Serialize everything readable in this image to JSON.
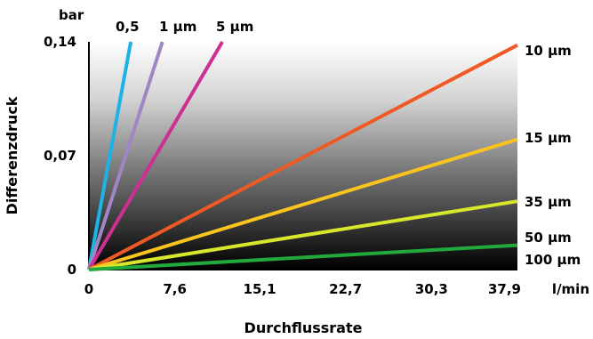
{
  "chart_data": {
    "type": "line",
    "title": "",
    "xlabel": "Durchflussrate",
    "ylabel": "Differenzdruck",
    "x_unit": "l/min",
    "y_unit": "bar",
    "xlim": [
      0,
      37.9
    ],
    "ylim": [
      0,
      0.14
    ],
    "x_ticks": [
      "0",
      "7,6",
      "15,1",
      "22,7",
      "30,3",
      "37,9"
    ],
    "y_ticks": [
      "0",
      "0,07",
      "0,14"
    ],
    "x_tick_values": [
      0,
      7.6,
      15.1,
      22.7,
      30.3,
      37.9
    ],
    "y_tick_values": [
      0,
      0.07,
      0.14
    ],
    "grid": false,
    "legend": "none",
    "series": [
      {
        "name": "0,5",
        "color": "#1cb4e4",
        "x": [
          0,
          3.7
        ],
        "y": [
          0,
          0.14
        ],
        "label_pos": "top"
      },
      {
        "name": "1 µm",
        "color": "#9e87c4",
        "x": [
          0,
          6.5
        ],
        "y": [
          0,
          0.14
        ],
        "label_pos": "top"
      },
      {
        "name": "5 µm",
        "color": "#cc3090",
        "x": [
          0,
          11.8
        ],
        "y": [
          0,
          0.14
        ],
        "label_pos": "top"
      },
      {
        "name": "10 µm",
        "color": "#ef5a24",
        "x": [
          0,
          37.9
        ],
        "y": [
          0,
          0.138
        ],
        "label_pos": "right"
      },
      {
        "name": "15 µm",
        "color": "#f9c41e",
        "x": [
          0,
          37.9
        ],
        "y": [
          0,
          0.08
        ],
        "label_pos": "right"
      },
      {
        "name": "35 µm",
        "color": "#d8e62c",
        "x": [
          0,
          37.9
        ],
        "y": [
          0,
          0.042
        ],
        "label_pos": "right"
      },
      {
        "name": "50 µm",
        "color": "#22a83c",
        "x": [
          0,
          37.9
        ],
        "y": [
          0,
          0.015
        ],
        "label_pos": "right"
      },
      {
        "name": "100 µm",
        "color": "#22a83c",
        "x": [
          0,
          37.9
        ],
        "y": [
          0,
          0.015
        ],
        "label_pos": "right",
        "draw_line": false
      }
    ]
  }
}
